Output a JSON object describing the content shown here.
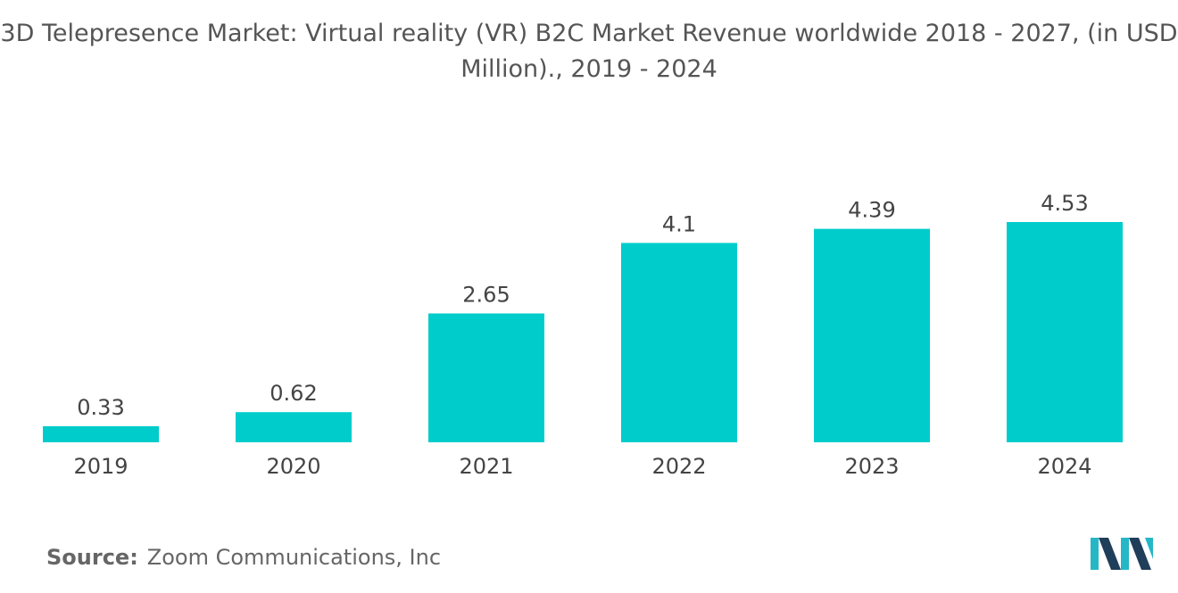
{
  "chart_data": {
    "type": "bar",
    "title": "3D Telepresence Market: Virtual reality (VR) B2C Market Revenue worldwide 2018 - 2027, (in USD Million)., 2019 - 2024",
    "categories": [
      "2019",
      "2020",
      "2021",
      "2022",
      "2023",
      "2024"
    ],
    "values": [
      0.33,
      0.62,
      2.65,
      4.1,
      4.39,
      4.53
    ],
    "value_labels": [
      "0.33",
      "0.62",
      "2.65",
      "4.1",
      "4.39",
      "4.53"
    ],
    "xlabel": "",
    "ylabel": "",
    "ylim": [
      0,
      4.53
    ],
    "grid": false,
    "legend": "none",
    "bar_color": "#00CCCC"
  },
  "source": {
    "label": "Source:",
    "text": "Zoom Communications, Inc"
  },
  "logo": {
    "icon": "mordor-intelligence-logo-icon",
    "colors": [
      "#1F3E5A",
      "#25B7C6"
    ]
  }
}
